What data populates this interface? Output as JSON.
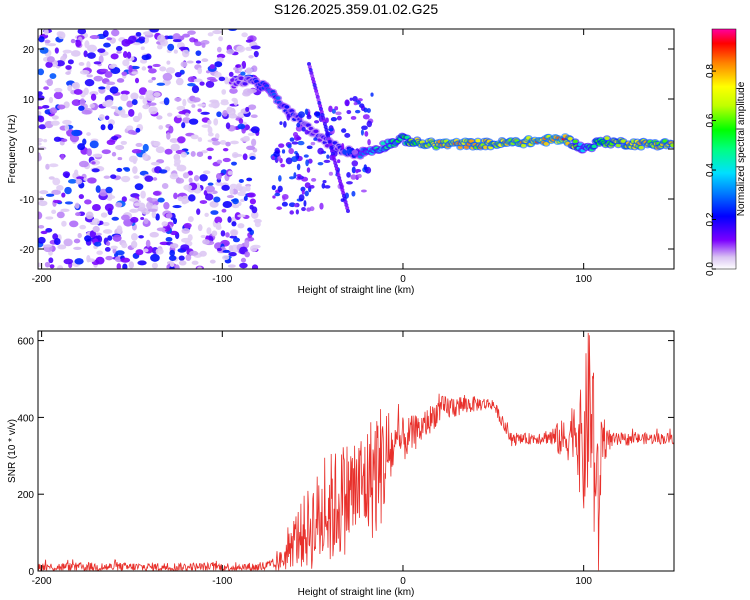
{
  "title": "S126.2025.359.01.02.G25",
  "chart_data": [
    {
      "type": "heatmap",
      "xlabel": "Height of straight line (km)",
      "ylabel": "Frequency (Hz)",
      "xlim": [
        -202,
        150
      ],
      "ylim": [
        -24,
        24
      ],
      "xticks": [
        -200,
        -100,
        0,
        100
      ],
      "yticks": [
        -20,
        -10,
        0,
        10,
        20
      ],
      "colorbar": {
        "label": "Normalized spectral amplitude",
        "range": [
          0,
          0.97
        ],
        "ticks": [
          0.0,
          0.2,
          0.4,
          0.6,
          0.8
        ]
      },
      "ridge": {
        "x": [
          -95,
          -85,
          -75,
          -70,
          -65,
          -55,
          -45,
          -35,
          -25,
          -15,
          -8,
          0,
          10,
          30,
          50,
          70,
          90,
          100,
          110,
          130,
          150
        ],
        "frequency": [
          13,
          14,
          12,
          10,
          8,
          5,
          2,
          0,
          -1,
          0,
          1,
          2,
          1,
          1,
          1,
          1.5,
          2,
          0,
          1.5,
          1,
          1
        ],
        "amplitude": [
          0.15,
          0.2,
          0.3,
          0.3,
          0.25,
          0.2,
          0.2,
          0.2,
          0.3,
          0.45,
          0.5,
          0.55,
          0.8,
          0.85,
          0.8,
          0.85,
          0.9,
          0.4,
          0.7,
          0.8,
          0.8
        ]
      },
      "noise_region_x": [
        -202,
        -80
      ]
    },
    {
      "type": "line",
      "xlabel": "Height of straight line (km)",
      "ylabel": "SNR (10 * v/v)",
      "xlim": [
        -202,
        150
      ],
      "ylim": [
        0,
        625
      ],
      "xticks": [
        -200,
        -100,
        0,
        100
      ],
      "yticks": [
        0,
        200,
        400,
        600
      ],
      "color": "#e8302b",
      "series": [
        {
          "name": "SNR",
          "x": [
            -202,
            -150,
            -100,
            -80,
            -70,
            -65,
            -60,
            -50,
            -40,
            -30,
            -20,
            -15,
            -10,
            -5,
            0,
            10,
            20,
            30,
            40,
            50,
            60,
            70,
            80,
            90,
            95,
            100,
            103,
            106,
            108,
            110,
            115,
            130,
            150
          ],
          "y": [
            10,
            10,
            10,
            10,
            15,
            40,
            80,
            120,
            160,
            200,
            230,
            260,
            290,
            320,
            340,
            370,
            420,
            430,
            435,
            435,
            340,
            345,
            350,
            340,
            380,
            300,
            450,
            320,
            100,
            350,
            340,
            345,
            345
          ],
          "spread": [
            12,
            12,
            12,
            12,
            20,
            40,
            70,
            120,
            150,
            150,
            150,
            180,
            150,
            70,
            60,
            40,
            35,
            30,
            20,
            15,
            15,
            15,
            20,
            60,
            80,
            180,
            250,
            280,
            220,
            80,
            20,
            15,
            15
          ]
        }
      ]
    }
  ]
}
